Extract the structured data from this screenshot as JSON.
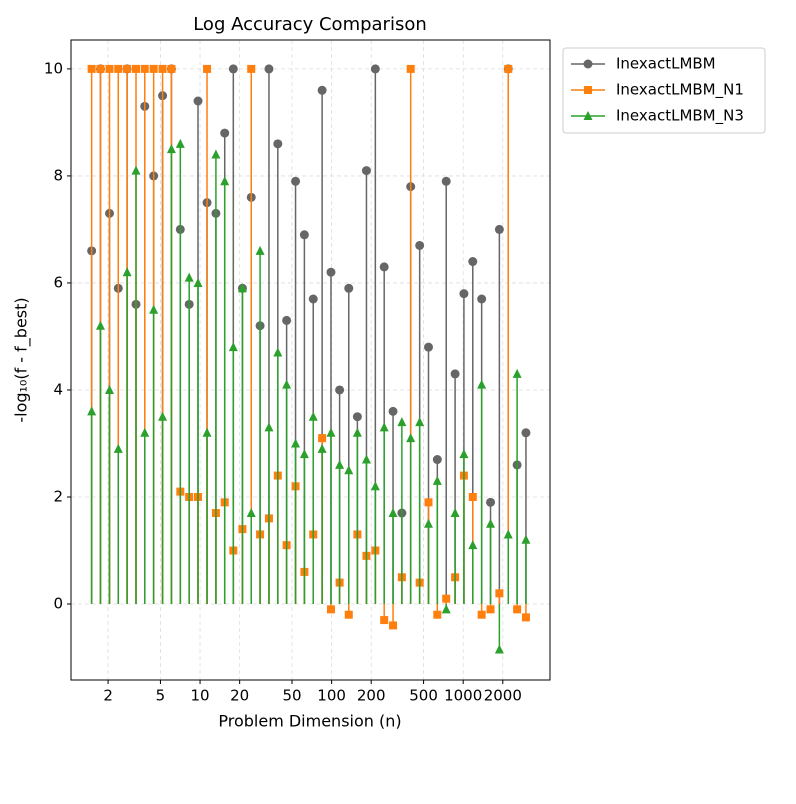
{
  "chart_data": {
    "type": "stem",
    "title": "Log Accuracy Comparison",
    "x_label": "Problem Dimension (n)",
    "y_label": "-log₁₀(f - f_best)",
    "x": [
      1.5,
      1.75,
      2.05,
      2.39,
      2.79,
      3.26,
      3.8,
      4.44,
      5.19,
      6.06,
      7.08,
      8.27,
      9.65,
      11.3,
      13.2,
      15.4,
      17.9,
      21,
      24.5,
      28.6,
      33.4,
      39,
      45.5,
      53.2,
      62.1,
      72.5,
      84.7,
      98.9,
      115,
      135,
      157,
      184,
      215,
      251,
      293,
      342,
      399,
      467,
      545,
      636,
      743,
      868,
      1013,
      1183,
      1382,
      1614,
      1884,
      2201,
      2570,
      3000
    ],
    "series": [
      {
        "name": "InexactLMBM",
        "color": "#666666",
        "marker": "circle",
        "values": [
          6.6,
          10,
          7.3,
          5.9,
          10,
          5.6,
          9.3,
          8,
          9.5,
          10,
          7.0,
          5.6,
          9.4,
          7.5,
          7.3,
          8.8,
          10,
          5.9,
          7.6,
          5.2,
          10,
          8.6,
          5.3,
          7.9,
          6.9,
          5.7,
          9.6,
          6.2,
          4.0,
          5.9,
          3.5,
          8.1,
          10,
          6.3,
          3.6,
          1.7,
          7.8,
          6.7,
          4.8,
          2.7,
          7.9,
          4.3,
          5.8,
          6.4,
          5.7,
          1.9,
          7.0,
          10,
          2.6,
          3.2
        ]
      },
      {
        "name": "InexactLMBM_N1",
        "color": "#ff7f0e",
        "marker": "square",
        "values": [
          10,
          10,
          10,
          10,
          10,
          10,
          10,
          10,
          10,
          10,
          2.1,
          2.0,
          2.0,
          10,
          1.7,
          1.9,
          1.0,
          1.4,
          10,
          1.3,
          1.6,
          2.4,
          1.1,
          2.2,
          0.6,
          1.3,
          3.1,
          -0.1,
          0.4,
          -0.2,
          1.3,
          0.9,
          1.0,
          -0.3,
          -0.4,
          0.5,
          10,
          0.4,
          1.9,
          -0.2,
          0.1,
          0.5,
          2.4,
          2.0,
          -0.2,
          -0.1,
          0.2,
          10,
          -0.1,
          -0.25
        ]
      },
      {
        "name": "InexactLMBM_N3",
        "color": "#2ca02c",
        "marker": "triangle",
        "values": [
          3.6,
          5.2,
          4.0,
          2.9,
          6.2,
          8.1,
          3.2,
          5.5,
          3.5,
          8.5,
          8.6,
          6.1,
          6.0,
          3.2,
          8.4,
          7.9,
          4.8,
          5.9,
          1.7,
          6.6,
          3.3,
          4.7,
          4.1,
          3.0,
          2.8,
          3.5,
          2.9,
          3.2,
          2.6,
          2.5,
          3.2,
          2.7,
          2.2,
          3.3,
          1.7,
          3.4,
          3.1,
          3.4,
          1.5,
          2.3,
          -0.1,
          1.7,
          2.8,
          1.1,
          4.1,
          1.5,
          -0.85,
          1.3,
          4.3,
          1.2
        ]
      }
    ],
    "xscale": "log",
    "xlim": [
      1.045,
      4570
    ],
    "xticks": [
      2,
      5,
      10,
      20,
      50,
      100,
      200,
      500,
      1000,
      2000
    ],
    "ylim": [
      -1.42,
      10.54
    ],
    "yticks": [
      0,
      2,
      4,
      6,
      8,
      10
    ],
    "grid": true,
    "legend": "outside-upper-right"
  }
}
